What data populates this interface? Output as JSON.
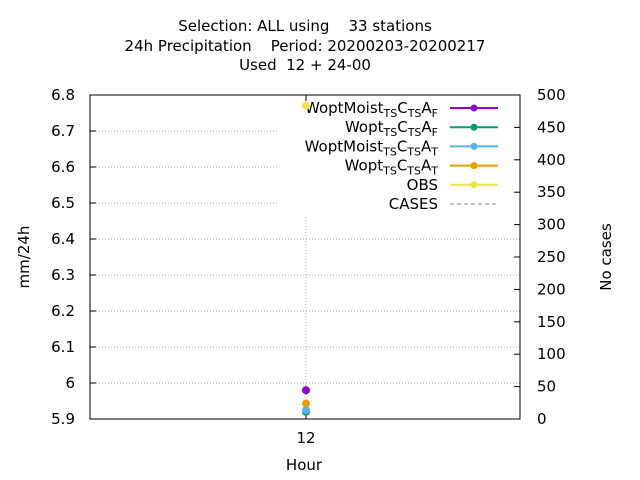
{
  "title_lines": [
    "Selection: ALL using    33 stations",
    "24h Precipitation    Period: 20200203-20200217",
    "Used  12 + 24-00"
  ],
  "chart_data": {
    "type": "line",
    "xlabel": "Hour",
    "ylabel": "mm/24h",
    "y2label": "No cases",
    "x_ticks": [
      "12"
    ],
    "y_ticks": [
      "5.9",
      "6",
      "6.1",
      "6.2",
      "6.3",
      "6.4",
      "6.5",
      "6.6",
      "6.7",
      "6.8"
    ],
    "y2_ticks": [
      "0",
      "50",
      "100",
      "150",
      "200",
      "250",
      "300",
      "350",
      "400",
      "450",
      "500"
    ],
    "ylim": [
      5.9,
      6.8
    ],
    "y2lim": [
      0,
      500
    ],
    "x": [
      12
    ],
    "grid": true,
    "legend_position": "top-right",
    "series": [
      {
        "name": "WoptMoist TS CTS A F",
        "label": {
          "base": "WoptMoist",
          "parts": [
            [
              "TS",
              "sub"
            ],
            [
              "C",
              "n"
            ],
            [
              "TS",
              "sub"
            ],
            [
              "A",
              "n"
            ],
            [
              "F",
              "sub"
            ]
          ]
        },
        "color": "#9400d3",
        "values": [
          5.98
        ],
        "axis": "y"
      },
      {
        "name": "Wopt TS CTS A F",
        "label": {
          "base": "Wopt",
          "parts": [
            [
              "TS",
              "sub"
            ],
            [
              "C",
              "n"
            ],
            [
              "TS",
              "sub"
            ],
            [
              "A",
              "n"
            ],
            [
              "F",
              "sub"
            ]
          ]
        },
        "color": "#009e73",
        "values": [
          5.92
        ],
        "axis": "y"
      },
      {
        "name": "WoptMoist TS CTS A T",
        "label": {
          "base": "WoptMoist",
          "parts": [
            [
              "TS",
              "sub"
            ],
            [
              "C",
              "n"
            ],
            [
              "TS",
              "sub"
            ],
            [
              "A",
              "n"
            ],
            [
              "T",
              "sub"
            ]
          ]
        },
        "color": "#56b4e9",
        "values": [
          5.925
        ],
        "axis": "y"
      },
      {
        "name": "Wopt TS CTS A T",
        "label": {
          "base": "Wopt",
          "parts": [
            [
              "TS",
              "sub"
            ],
            [
              "C",
              "n"
            ],
            [
              "TS",
              "sub"
            ],
            [
              "A",
              "n"
            ],
            [
              "T",
              "sub"
            ]
          ]
        },
        "color": "#e69f00",
        "values": [
          5.943
        ],
        "axis": "y"
      },
      {
        "name": "OBS",
        "label": {
          "base": "OBS",
          "parts": []
        },
        "color": "#f0e442",
        "values": [
          6.77
        ],
        "axis": "y"
      },
      {
        "name": "CASES",
        "label": {
          "base": "CASES",
          "parts": []
        },
        "color": "#808080",
        "values": [
          317
        ],
        "axis": "y2",
        "dashed": true
      }
    ]
  }
}
